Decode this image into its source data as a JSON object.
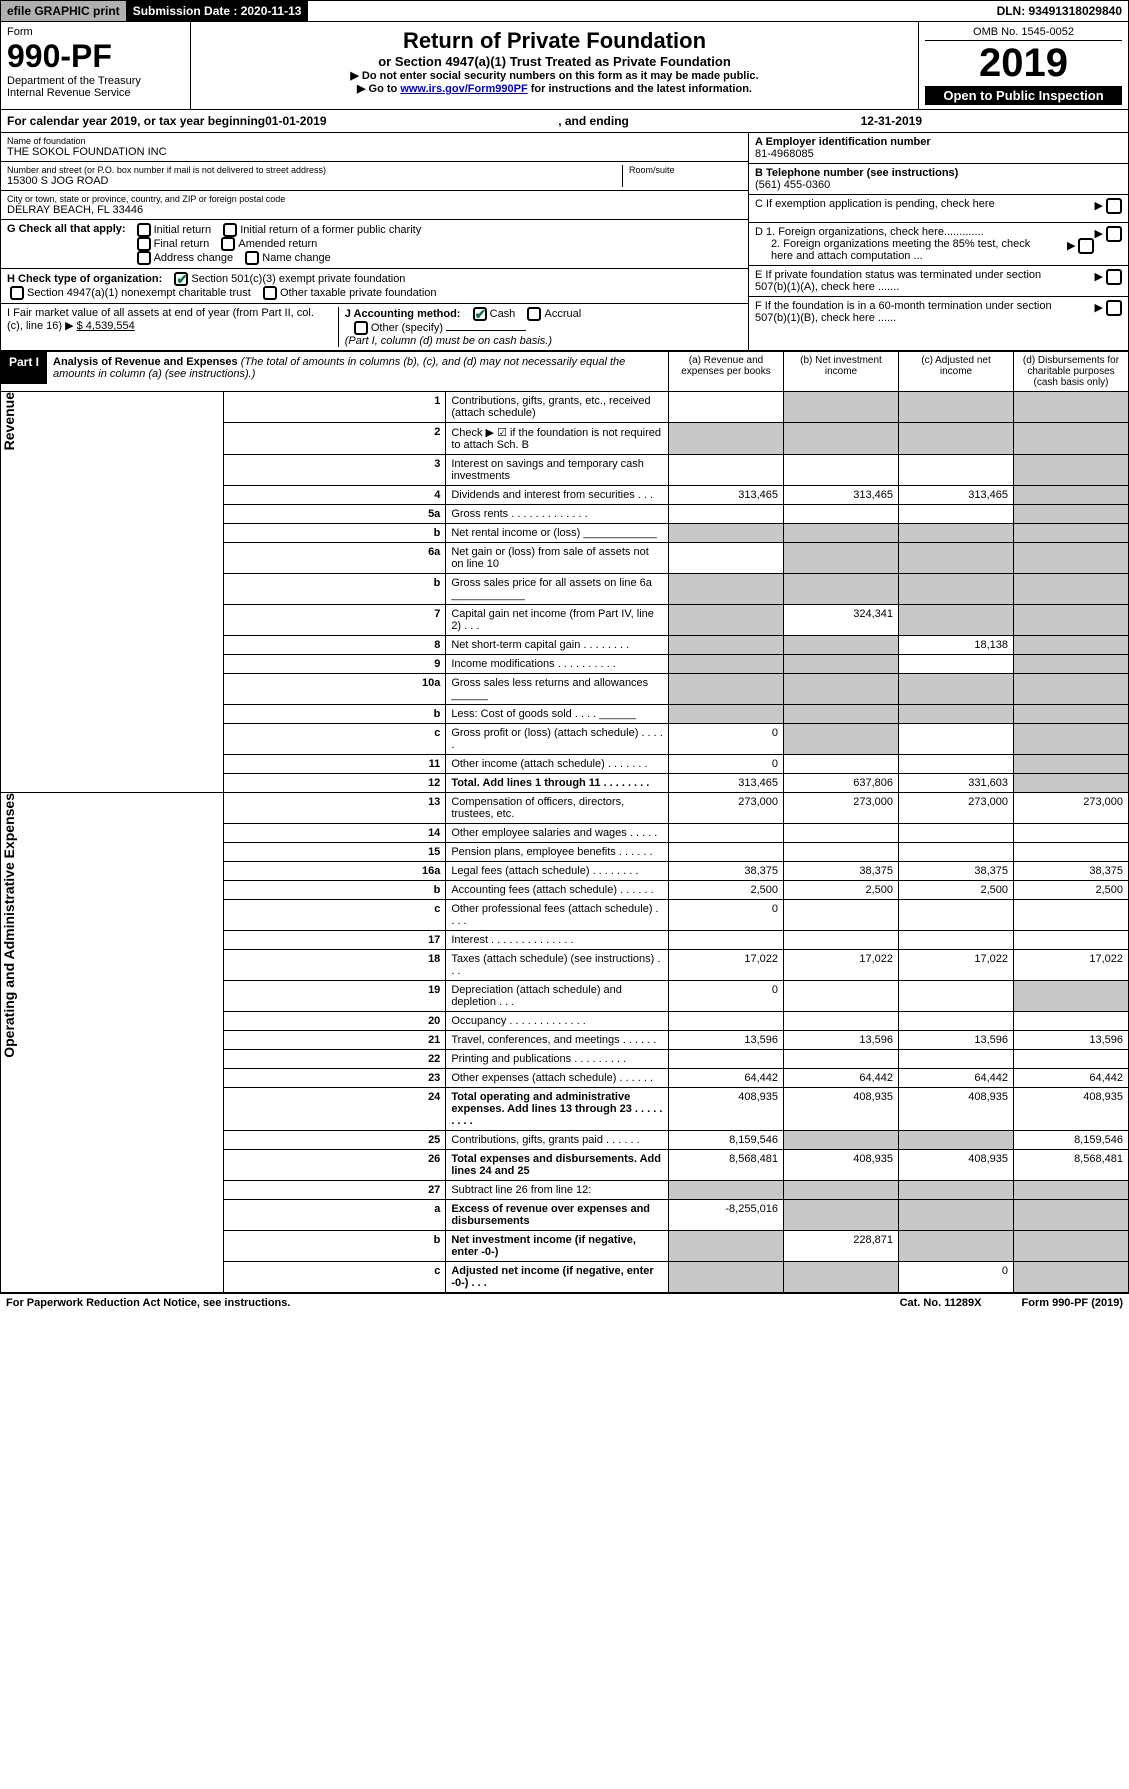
{
  "topbar": {
    "efile": "efile GRAPHIC print",
    "submission_label": "Submission Date : 2020-11-13",
    "dln": "DLN: 93491318029840"
  },
  "header": {
    "form_label": "Form",
    "form_no": "990-PF",
    "dept": "Department of the Treasury",
    "irs": "Internal Revenue Service",
    "title": "Return of Private Foundation",
    "subtitle": "or Section 4947(a)(1) Trust Treated as Private Foundation",
    "instr1": "▶ Do not enter social security numbers on this form as it may be made public.",
    "instr2_pre": "▶ Go to ",
    "instr2_link": "www.irs.gov/Form990PF",
    "instr2_post": " for instructions and the latest information.",
    "omb": "OMB No. 1545-0052",
    "year": "2019",
    "open": "Open to Public Inspection"
  },
  "cal": {
    "pre": "For calendar year 2019, or tax year beginning ",
    "begin": "01-01-2019",
    "mid": " , and ending ",
    "end": "12-31-2019"
  },
  "info": {
    "name_label": "Name of foundation",
    "name": "THE SOKOL FOUNDATION INC",
    "addr_label": "Number and street (or P.O. box number if mail is not delivered to street address)",
    "room_label": "Room/suite",
    "addr": "15300 S JOG ROAD",
    "city_label": "City or town, state or province, country, and ZIP or foreign postal code",
    "city": "DELRAY BEACH, FL  33446",
    "ein_label": "A Employer identification number",
    "ein": "81-4968085",
    "tel_label": "B Telephone number (see instructions)",
    "tel": "(561) 455-0360",
    "c_label": "C If exemption application is pending, check here",
    "d1": "D 1. Foreign organizations, check here.............",
    "d2": "2. Foreign organizations meeting the 85% test, check here and attach computation ...",
    "e": "E  If private foundation status was terminated under section 507(b)(1)(A), check here .......",
    "f": "F  If the foundation is in a 60-month termination under section 507(b)(1)(B), check here ......"
  },
  "g": {
    "label": "G Check all that apply:",
    "o1": "Initial return",
    "o2": "Initial return of a former public charity",
    "o3": "Final return",
    "o4": "Amended return",
    "o5": "Address change",
    "o6": "Name change"
  },
  "h": {
    "label": "H Check type of organization:",
    "o1": "Section 501(c)(3) exempt private foundation",
    "o2": "Section 4947(a)(1) nonexempt charitable trust",
    "o3": "Other taxable private foundation"
  },
  "i": {
    "label": "I Fair market value of all assets at end of year (from Part II, col. (c), line 16) ▶",
    "val": "$  4,539,554"
  },
  "j": {
    "label": "J Accounting method:",
    "o1": "Cash",
    "o2": "Accrual",
    "o3": "Other (specify)",
    "note": "(Part I, column (d) must be on cash basis.)"
  },
  "part1": {
    "label": "Part I",
    "title": "Analysis of Revenue and Expenses",
    "note": "(The total of amounts in columns (b), (c), and (d) may not necessarily equal the amounts in column (a) (see instructions).)",
    "col_a": "(a)   Revenue and expenses per books",
    "col_b": "(b)  Net investment income",
    "col_c": "(c)  Adjusted net income",
    "col_d": "(d)  Disbursements for charitable purposes (cash basis only)"
  },
  "sections": {
    "rev": "Revenue",
    "exp": "Operating and Administrative Expenses"
  },
  "rows": [
    {
      "n": "1",
      "d": "Contributions, gifts, grants, etc., received (attach schedule)",
      "a": "",
      "b": "",
      "c": "",
      "dd": "",
      "sb": true,
      "sc": true,
      "sd": true
    },
    {
      "n": "2",
      "d": "Check ▶ ☑ if the foundation is not required to attach Sch. B",
      "a": "",
      "b": "",
      "c": "",
      "dd": "",
      "sa": true,
      "sb": true,
      "sc": true,
      "sd": true,
      "bold_not": true
    },
    {
      "n": "3",
      "d": "Interest on savings and temporary cash investments",
      "a": "",
      "b": "",
      "c": "",
      "dd": "",
      "sd": true
    },
    {
      "n": "4",
      "d": "Dividends and interest from securities    .   .   .",
      "a": "313,465",
      "b": "313,465",
      "c": "313,465",
      "dd": "",
      "sd": true
    },
    {
      "n": "5a",
      "d": "Gross rents   .   .   .   .   .   .   .   .   .   .   .   .   .",
      "a": "",
      "b": "",
      "c": "",
      "dd": "",
      "sd": true
    },
    {
      "n": "b",
      "d": "Net rental income or (loss)  ____________",
      "a": "",
      "b": "",
      "c": "",
      "dd": "",
      "sa": true,
      "sb": true,
      "sc": true,
      "sd": true
    },
    {
      "n": "6a",
      "d": "Net gain or (loss) from sale of assets not on line 10",
      "a": "",
      "b": "",
      "c": "",
      "dd": "",
      "sb": true,
      "sc": true,
      "sd": true
    },
    {
      "n": "b",
      "d": "Gross sales price for all assets on line 6a  ____________",
      "a": "",
      "b": "",
      "c": "",
      "dd": "",
      "sa": true,
      "sb": true,
      "sc": true,
      "sd": true
    },
    {
      "n": "7",
      "d": "Capital gain net income (from Part IV, line 2)    .   .   .",
      "a": "",
      "b": "324,341",
      "c": "",
      "dd": "",
      "sa": true,
      "sc": true,
      "sd": true
    },
    {
      "n": "8",
      "d": "Net short-term capital gain   .   .   .   .   .   .   .   .",
      "a": "",
      "b": "",
      "c": "18,138",
      "dd": "",
      "sa": true,
      "sb": true,
      "sd": true
    },
    {
      "n": "9",
      "d": "Income modifications   .   .   .   .   .   .   .   .   .   .",
      "a": "",
      "b": "",
      "c": "",
      "dd": "",
      "sa": true,
      "sb": true,
      "sd": true
    },
    {
      "n": "10a",
      "d": "Gross sales less returns and allowances  ______",
      "a": "",
      "b": "",
      "c": "",
      "dd": "",
      "sa": true,
      "sb": true,
      "sc": true,
      "sd": true
    },
    {
      "n": "b",
      "d": "Less: Cost of goods sold      .   .   .   .   ______",
      "a": "",
      "b": "",
      "c": "",
      "dd": "",
      "sa": true,
      "sb": true,
      "sc": true,
      "sd": true
    },
    {
      "n": "c",
      "d": "Gross profit or (loss) (attach schedule)    .   .   .   .   .",
      "a": "0",
      "b": "",
      "c": "",
      "dd": "",
      "sb": true,
      "sd": true
    },
    {
      "n": "11",
      "d": "Other income (attach schedule)    .   .   .   .   .   .   .",
      "a": "0",
      "b": "",
      "c": "",
      "dd": "",
      "sd": true
    },
    {
      "n": "12",
      "d": "Total. Add lines 1 through 11    .   .   .   .   .   .   .   .",
      "a": "313,465",
      "b": "637,806",
      "c": "331,603",
      "dd": "",
      "sd": true,
      "bold": true
    },
    {
      "n": "13",
      "d": "Compensation of officers, directors, trustees, etc.",
      "a": "273,000",
      "b": "273,000",
      "c": "273,000",
      "dd": "273,000"
    },
    {
      "n": "14",
      "d": "Other employee salaries and wages    .   .   .   .   .",
      "a": "",
      "b": "",
      "c": "",
      "dd": ""
    },
    {
      "n": "15",
      "d": "Pension plans, employee benefits    .   .   .   .   .   .",
      "a": "",
      "b": "",
      "c": "",
      "dd": ""
    },
    {
      "n": "16a",
      "d": "Legal fees (attach schedule)   .   .   .   .   .   .   .   .",
      "a": "38,375",
      "b": "38,375",
      "c": "38,375",
      "dd": "38,375"
    },
    {
      "n": "b",
      "d": "Accounting fees (attach schedule)   .   .   .   .   .   .",
      "a": "2,500",
      "b": "2,500",
      "c": "2,500",
      "dd": "2,500"
    },
    {
      "n": "c",
      "d": "Other professional fees (attach schedule)    .   .   .   .",
      "a": "0",
      "b": "",
      "c": "",
      "dd": ""
    },
    {
      "n": "17",
      "d": "Interest   .   .   .   .   .   .   .   .   .   .   .   .   .   .",
      "a": "",
      "b": "",
      "c": "",
      "dd": ""
    },
    {
      "n": "18",
      "d": "Taxes (attach schedule) (see instructions)    .   .   .",
      "a": "17,022",
      "b": "17,022",
      "c": "17,022",
      "dd": "17,022"
    },
    {
      "n": "19",
      "d": "Depreciation (attach schedule) and depletion    .   .   .",
      "a": "0",
      "b": "",
      "c": "",
      "dd": "",
      "sd": true
    },
    {
      "n": "20",
      "d": "Occupancy   .   .   .   .   .   .   .   .   .   .   .   .   .",
      "a": "",
      "b": "",
      "c": "",
      "dd": ""
    },
    {
      "n": "21",
      "d": "Travel, conferences, and meetings   .   .   .   .   .   .",
      "a": "13,596",
      "b": "13,596",
      "c": "13,596",
      "dd": "13,596"
    },
    {
      "n": "22",
      "d": "Printing and publications   .   .   .   .   .   .   .   .   .",
      "a": "",
      "b": "",
      "c": "",
      "dd": ""
    },
    {
      "n": "23",
      "d": "Other expenses (attach schedule)   .   .   .   .   .   .",
      "a": "64,442",
      "b": "64,442",
      "c": "64,442",
      "dd": "64,442"
    },
    {
      "n": "24",
      "d": "Total operating and administrative expenses. Add lines 13 through 23   .   .   .   .   .   .   .   .   .",
      "a": "408,935",
      "b": "408,935",
      "c": "408,935",
      "dd": "408,935",
      "bold": true
    },
    {
      "n": "25",
      "d": "Contributions, gifts, grants paid    .   .   .   .   .   .",
      "a": "8,159,546",
      "b": "",
      "c": "",
      "dd": "8,159,546",
      "sb": true,
      "sc": true
    },
    {
      "n": "26",
      "d": "Total expenses and disbursements. Add lines 24 and 25",
      "a": "8,568,481",
      "b": "408,935",
      "c": "408,935",
      "dd": "8,568,481",
      "bold": true
    },
    {
      "n": "27",
      "d": "Subtract line 26 from line 12:",
      "a": "",
      "b": "",
      "c": "",
      "dd": "",
      "sa": true,
      "sb": true,
      "sc": true,
      "sd": true
    },
    {
      "n": "a",
      "d": "Excess of revenue over expenses and disbursements",
      "a": "-8,255,016",
      "b": "",
      "c": "",
      "dd": "",
      "sb": true,
      "sc": true,
      "sd": true,
      "bold": true
    },
    {
      "n": "b",
      "d": "Net investment income (if negative, enter -0-)",
      "a": "",
      "b": "228,871",
      "c": "",
      "dd": "",
      "sa": true,
      "sc": true,
      "sd": true,
      "bold": true
    },
    {
      "n": "c",
      "d": "Adjusted net income (if negative, enter -0-)    .   .   .",
      "a": "",
      "b": "",
      "c": "0",
      "dd": "",
      "sa": true,
      "sb": true,
      "sd": true,
      "bold": true
    }
  ],
  "foot": {
    "l": "For Paperwork Reduction Act Notice, see instructions.",
    "m": "Cat. No. 11289X",
    "r": "Form 990-PF (2019)"
  }
}
